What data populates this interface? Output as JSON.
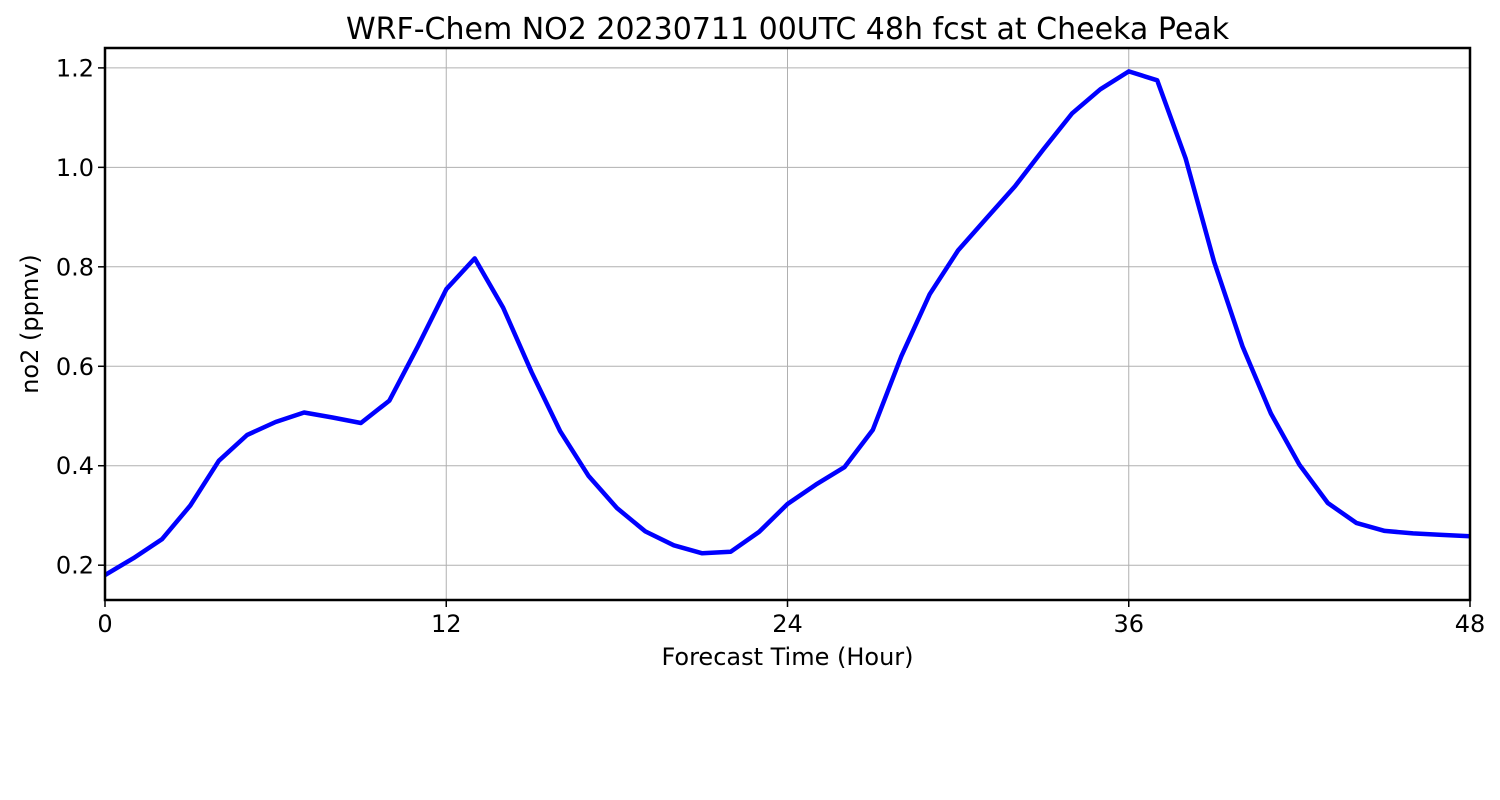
{
  "chart_data": {
    "type": "line",
    "title": "WRF-Chem NO2  20230711 00UTC 48h fcst at Cheeka Peak",
    "xlabel": "Forecast Time (Hour)",
    "ylabel": "no2  (ppmv)",
    "xlim": [
      0,
      48
    ],
    "ylim": [
      0.13,
      1.24
    ],
    "xticks": [
      0,
      12,
      24,
      36,
      48
    ],
    "xtick_labels": [
      "0",
      "12",
      "24",
      "36",
      "48"
    ],
    "yticks": [
      0.2,
      0.4,
      0.6,
      0.8,
      1.0,
      1.2
    ],
    "ytick_labels": [
      "0.2",
      "0.4",
      "0.6",
      "0.8",
      "1.0",
      "1.2"
    ],
    "grid": true,
    "line_color": "#0000ff",
    "grid_color": "#b0b0b0",
    "series": [
      {
        "x": [
          0,
          1,
          2,
          3,
          4,
          5,
          6,
          7,
          8,
          9,
          10,
          11,
          12,
          13,
          14,
          15,
          16,
          17,
          18,
          19,
          20,
          21,
          22,
          23,
          24,
          25,
          26,
          27,
          28,
          29,
          30,
          31,
          32,
          33,
          34,
          35,
          36,
          37,
          38,
          39,
          40,
          41,
          42,
          43,
          44,
          45,
          46,
          47,
          48
        ],
        "values": [
          0.18,
          0.214,
          0.252,
          0.32,
          0.41,
          0.462,
          0.488,
          0.507,
          0.497,
          0.486,
          0.531,
          0.64,
          0.755,
          0.817,
          0.718,
          0.588,
          0.47,
          0.38,
          0.315,
          0.268,
          0.24,
          0.224,
          0.227,
          0.267,
          0.323,
          0.362,
          0.397,
          0.472,
          0.62,
          0.745,
          0.833,
          0.898,
          0.962,
          1.036,
          1.108,
          1.157,
          1.193,
          1.175,
          1.018,
          0.81,
          0.64,
          0.505,
          0.402,
          0.325,
          0.285,
          0.269,
          0.264,
          0.261,
          0.258
        ]
      }
    ]
  }
}
